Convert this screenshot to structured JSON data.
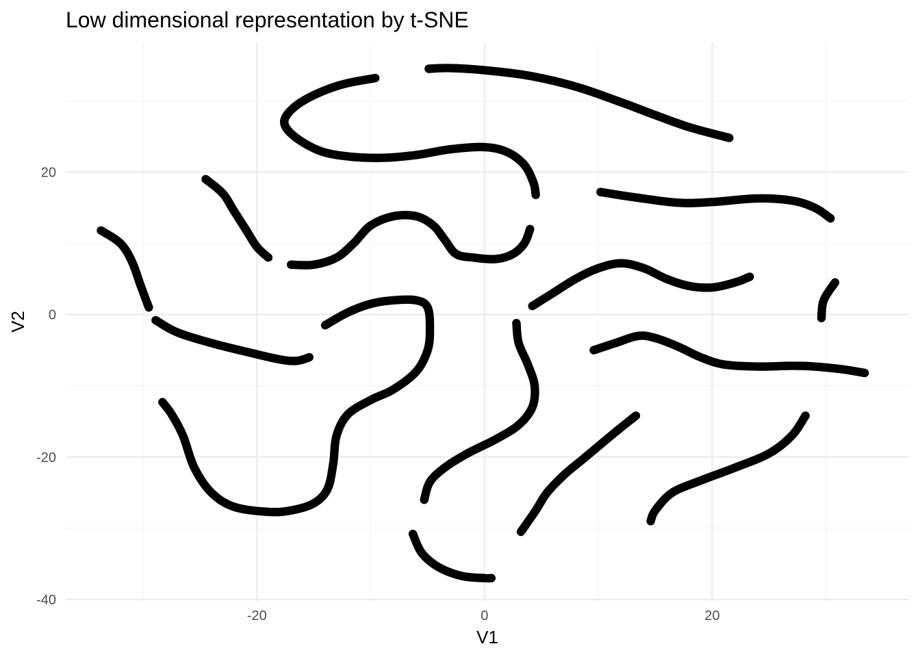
{
  "chart_data": {
    "type": "scatter",
    "title": "Low dimensional representation by t-SNE",
    "xlabel": "V1",
    "ylabel": "V2",
    "xlim": [
      -36.8,
      37.3
    ],
    "ylim": [
      -40.2,
      38.2
    ],
    "x_ticks": [
      -20,
      0,
      20
    ],
    "x_tick_labels": [
      "-20",
      "0",
      "20"
    ],
    "y_ticks": [
      -40,
      -20,
      0,
      20
    ],
    "y_tick_labels": [
      "-40",
      "-20",
      "0",
      "20"
    ],
    "x_minor_ticks": [
      -30,
      -10,
      10,
      30
    ],
    "y_minor_ticks": [
      -30,
      -10,
      10,
      30
    ],
    "grid": true,
    "legend": "none",
    "point_color": "#000000",
    "series": [
      {
        "points": [
          [
            -9.6,
            33.2
          ],
          [
            -12.5,
            32.3
          ],
          [
            -15,
            30.8
          ],
          [
            -16.8,
            29
          ],
          [
            -17.6,
            27
          ],
          [
            -16.7,
            25
          ],
          [
            -14.5,
            23
          ],
          [
            -12,
            22.2
          ],
          [
            -9,
            22
          ],
          [
            -6,
            22.4
          ],
          [
            -3,
            23.2
          ],
          [
            0,
            23.5
          ],
          [
            2,
            22.8
          ],
          [
            3.5,
            21
          ],
          [
            4.3,
            18.5
          ],
          [
            4.5,
            16.8
          ]
        ]
      },
      {
        "points": [
          [
            -4.9,
            34.5
          ],
          [
            -3,
            34.6
          ],
          [
            0,
            34.3
          ],
          [
            4,
            33.5
          ],
          [
            8,
            32
          ],
          [
            12,
            29.8
          ],
          [
            15,
            28
          ],
          [
            18,
            26.3
          ],
          [
            21.5,
            24.8
          ]
        ]
      },
      {
        "points": [
          [
            -24.5,
            19
          ],
          [
            -23,
            17
          ],
          [
            -22,
            14.5
          ],
          [
            -21,
            12
          ],
          [
            -20,
            9.5
          ],
          [
            -19,
            8
          ]
        ]
      },
      {
        "points": [
          [
            -17,
            7
          ],
          [
            -15,
            7
          ],
          [
            -13,
            8
          ],
          [
            -11.5,
            10
          ],
          [
            -10,
            12.5
          ],
          [
            -8,
            13.8
          ],
          [
            -6,
            13.8
          ],
          [
            -4.5,
            12.5
          ],
          [
            -3.5,
            10.5
          ],
          [
            -2.5,
            8.5
          ],
          [
            -1,
            8
          ],
          [
            1,
            7.8
          ],
          [
            2.5,
            8.5
          ],
          [
            3.5,
            10
          ],
          [
            4,
            12
          ]
        ]
      },
      {
        "points": [
          [
            10.2,
            17.2
          ],
          [
            13,
            16.5
          ],
          [
            17,
            15.7
          ],
          [
            20,
            15.8
          ],
          [
            24,
            16.3
          ],
          [
            27,
            16
          ],
          [
            29,
            15
          ],
          [
            30.4,
            13.5
          ]
        ]
      },
      {
        "points": [
          [
            -33.7,
            11.8
          ],
          [
            -32,
            10
          ],
          [
            -31,
            7.5
          ],
          [
            -30.2,
            4
          ],
          [
            -29.5,
            1
          ]
        ]
      },
      {
        "points": [
          [
            -28.9,
            -0.8
          ],
          [
            -27,
            -2.5
          ],
          [
            -24,
            -4
          ],
          [
            -21,
            -5.2
          ],
          [
            -18,
            -6.3
          ],
          [
            -16.5,
            -6.5
          ],
          [
            -15.4,
            -6
          ]
        ]
      },
      {
        "points": [
          [
            -14,
            -1.5
          ],
          [
            -12,
            0.3
          ],
          [
            -10,
            1.5
          ],
          [
            -8,
            2
          ],
          [
            -6,
            2
          ],
          [
            -5,
            1
          ],
          [
            -4.8,
            -2
          ],
          [
            -5,
            -5
          ],
          [
            -6,
            -8
          ],
          [
            -8,
            -10.5
          ],
          [
            -10,
            -12
          ],
          [
            -12,
            -14
          ],
          [
            -13,
            -17
          ],
          [
            -13.3,
            -21
          ],
          [
            -13.8,
            -24.5
          ],
          [
            -15,
            -26.5
          ],
          [
            -17,
            -27.5
          ],
          [
            -19,
            -27.7
          ],
          [
            -22,
            -27
          ],
          [
            -24,
            -25
          ],
          [
            -25.5,
            -21.5
          ],
          [
            -26.5,
            -17
          ],
          [
            -27.5,
            -14
          ],
          [
            -28.3,
            -12.3
          ]
        ]
      },
      {
        "points": [
          [
            4.2,
            1.2
          ],
          [
            6,
            3
          ],
          [
            8,
            5
          ],
          [
            10,
            6.5
          ],
          [
            12,
            7.2
          ],
          [
            14,
            6.5
          ],
          [
            16,
            5
          ],
          [
            18,
            4
          ],
          [
            20,
            3.8
          ],
          [
            22,
            4.5
          ],
          [
            23.3,
            5.3
          ]
        ]
      },
      {
        "points": [
          [
            30.8,
            4.5
          ],
          [
            29.8,
            2
          ],
          [
            29.6,
            -0.5
          ]
        ]
      },
      {
        "points": [
          [
            9.6,
            -5
          ],
          [
            11.5,
            -4
          ],
          [
            13.5,
            -3
          ],
          [
            15,
            -3.3
          ],
          [
            17,
            -4.5
          ],
          [
            19,
            -6
          ],
          [
            21,
            -7
          ],
          [
            24,
            -7.3
          ],
          [
            27,
            -7.2
          ],
          [
            29,
            -7.3
          ],
          [
            31.5,
            -7.7
          ],
          [
            33.4,
            -8.2
          ]
        ]
      },
      {
        "points": [
          [
            2.8,
            -1.2
          ],
          [
            3,
            -4
          ],
          [
            3.8,
            -7
          ],
          [
            4.4,
            -10
          ],
          [
            4.2,
            -13
          ],
          [
            3,
            -15.5
          ],
          [
            1,
            -17.5
          ],
          [
            -1.5,
            -19.5
          ],
          [
            -3.5,
            -21.5
          ],
          [
            -4.8,
            -23.5
          ],
          [
            -5.3,
            -26
          ]
        ]
      },
      {
        "points": [
          [
            13.3,
            -14.2
          ],
          [
            11.5,
            -16.5
          ],
          [
            10,
            -18.5
          ],
          [
            8.5,
            -20.5
          ],
          [
            7,
            -22.5
          ],
          [
            5.5,
            -25
          ],
          [
            4.5,
            -27.5
          ],
          [
            3.2,
            -30.5
          ]
        ]
      },
      {
        "points": [
          [
            28.2,
            -14.2
          ],
          [
            27,
            -17
          ],
          [
            25,
            -19.5
          ],
          [
            22,
            -21.5
          ],
          [
            19,
            -23.3
          ],
          [
            16.5,
            -25
          ],
          [
            15,
            -27.5
          ],
          [
            14.6,
            -29
          ]
        ]
      },
      {
        "points": [
          [
            -6.3,
            -30.8
          ],
          [
            -5.5,
            -33.5
          ],
          [
            -4,
            -35.5
          ],
          [
            -2,
            -36.7
          ],
          [
            0,
            -37
          ],
          [
            0.6,
            -37
          ]
        ]
      }
    ]
  }
}
